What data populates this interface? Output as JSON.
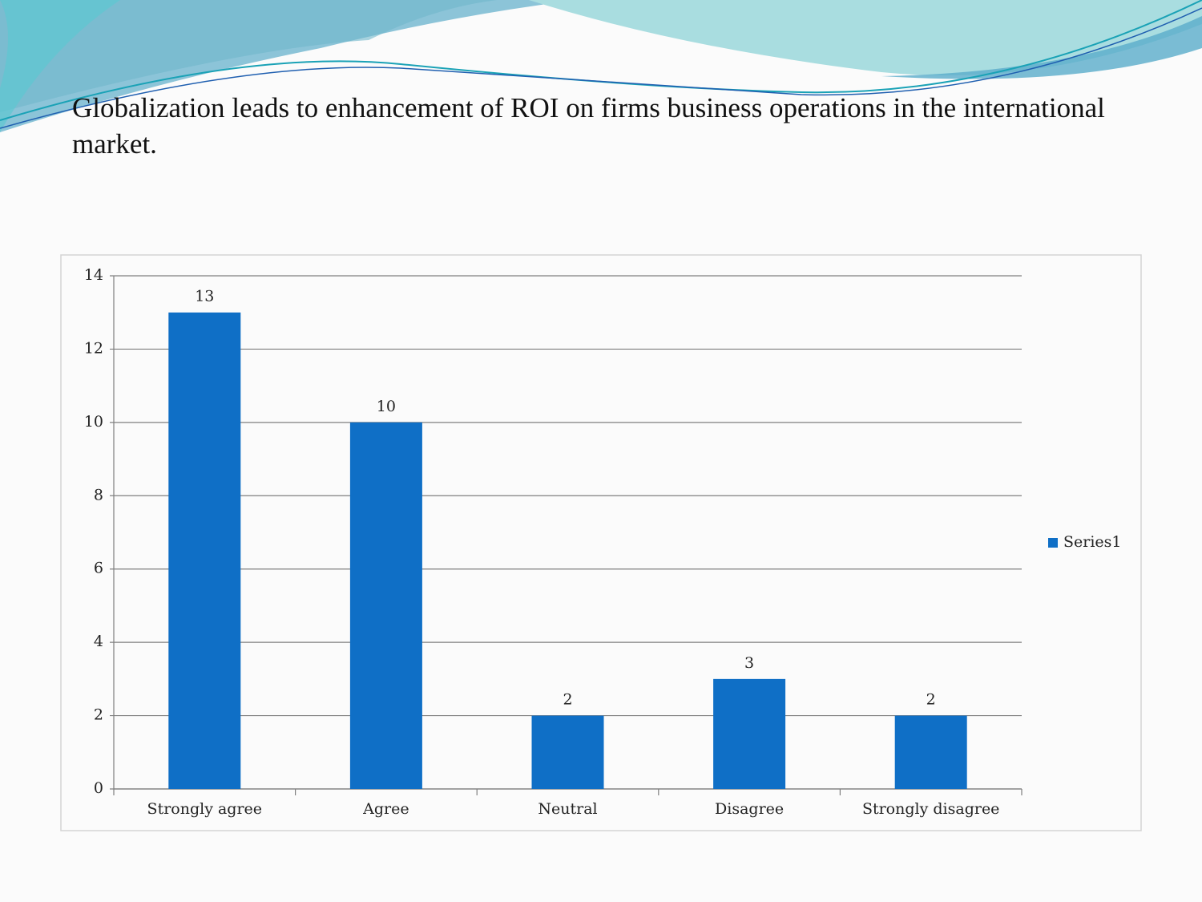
{
  "chart_data": {
    "type": "bar",
    "title": "Globalization leads to enhancement of ROI on firms business operations in the international market.",
    "categories": [
      "Strongly agree",
      "Agree",
      "Neutral",
      "Disagree",
      "Strongly disagree"
    ],
    "series": [
      {
        "name": "Series1",
        "color": "#0f6fc6",
        "values": [
          13,
          10,
          2,
          3,
          2
        ]
      }
    ],
    "ylim": [
      0,
      14
    ],
    "yticks": [
      0,
      2,
      4,
      6,
      8,
      10,
      12,
      14
    ],
    "grid": true,
    "legend": "right",
    "data_labels": true
  }
}
